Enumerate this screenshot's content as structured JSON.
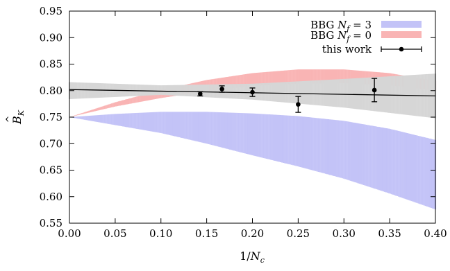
{
  "chart_data": {
    "type": "line",
    "xlabel": "1/N_c",
    "ylabel": "B̂_K",
    "xlim": [
      0.0,
      0.4
    ],
    "ylim": [
      0.55,
      0.95
    ],
    "x_ticks": [
      "0.00",
      "0.05",
      "0.10",
      "0.15",
      "0.20",
      "0.25",
      "0.30",
      "0.35",
      "0.40"
    ],
    "y_ticks": [
      "0.55",
      "0.60",
      "0.65",
      "0.70",
      "0.75",
      "0.80",
      "0.85",
      "0.90",
      "0.95"
    ],
    "grid": false,
    "legend": {
      "placement": "top-right"
    },
    "series": [
      {
        "name": "BBG N_f = 3",
        "kind": "band",
        "color": "#c3c3f7",
        "x": [
          0.0,
          0.05,
          0.1,
          0.15,
          0.2,
          0.25,
          0.3,
          0.35,
          0.4
        ],
        "upper": [
          0.75,
          0.756,
          0.76,
          0.76,
          0.757,
          0.752,
          0.743,
          0.728,
          0.707
        ],
        "lower": [
          0.75,
          0.735,
          0.72,
          0.7,
          0.678,
          0.657,
          0.634,
          0.606,
          0.576
        ]
      },
      {
        "name": "BBG N_f = 0",
        "kind": "band",
        "color": "#f9b4b4",
        "x": [
          0.0,
          0.05,
          0.1,
          0.15,
          0.2,
          0.25,
          0.3,
          0.35,
          0.4
        ],
        "upper": [
          0.75,
          0.778,
          0.801,
          0.82,
          0.833,
          0.84,
          0.84,
          0.833,
          0.818
        ],
        "lower": [
          0.75,
          0.77,
          0.786,
          0.799,
          0.809,
          0.813,
          0.814,
          0.81,
          0.8
        ]
      },
      {
        "name": "",
        "kind": "band",
        "color": "#d6d6d6",
        "x": [
          0.0,
          0.1,
          0.2,
          0.3,
          0.4
        ],
        "upper": [
          0.816,
          0.81,
          0.813,
          0.822,
          0.832
        ],
        "lower": [
          0.784,
          0.792,
          0.783,
          0.768,
          0.748
        ]
      },
      {
        "name": "",
        "kind": "line",
        "color": "#000000",
        "x": [
          0.0,
          0.4
        ],
        "y": [
          0.802,
          0.79
        ]
      },
      {
        "name": "this work",
        "kind": "points",
        "color": "#000000",
        "x": [
          0.1429,
          0.1667,
          0.2,
          0.25,
          0.3333
        ],
        "y": [
          0.794,
          0.803,
          0.797,
          0.774,
          0.801
        ],
        "err": [
          0.004,
          0.006,
          0.008,
          0.015,
          0.022
        ]
      }
    ]
  }
}
